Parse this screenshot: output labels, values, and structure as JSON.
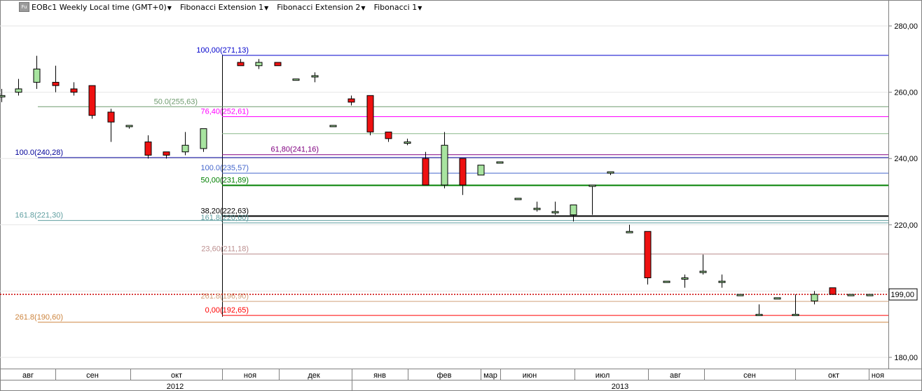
{
  "toolbar": {
    "badge": "Fu",
    "items": [
      {
        "label": "EOBc1 Weekly Local time (GMT+0)"
      },
      {
        "label": "Fibonacci Extension 1"
      },
      {
        "label": "Fibonacci Extension 2"
      },
      {
        "label": "Fibonacci 1"
      }
    ]
  },
  "chart_data": {
    "type": "candlestick",
    "symbol": "EOBc1",
    "timeframe": "Weekly",
    "ylim": [
      176,
      288
    ],
    "y_ticks": [
      "280,00",
      "260,00",
      "240,00",
      "220,00",
      "200,00",
      "180,00"
    ],
    "y_tick_values": [
      280,
      260,
      240,
      220,
      200,
      180
    ],
    "current_price": {
      "value": 199.0,
      "label": "199,00"
    },
    "month_labels": [
      "авг",
      "сен",
      "окт",
      "ноя",
      "дек",
      "янв",
      "фев",
      "мар",
      "июн",
      "июл",
      "авг",
      "сен",
      "окт",
      "ноя"
    ],
    "year_labels": [
      "2012",
      "2013"
    ],
    "candles": [
      {
        "o": 259,
        "h": 261,
        "l": 257,
        "c": 259
      },
      {
        "o": 260,
        "h": 264,
        "l": 259,
        "c": 261
      },
      {
        "o": 263,
        "h": 271,
        "l": 261,
        "c": 267
      },
      {
        "o": 263,
        "h": 268,
        "l": 260,
        "c": 262
      },
      {
        "o": 261,
        "h": 263,
        "l": 259,
        "c": 260
      },
      {
        "o": 262,
        "h": 262,
        "l": 252,
        "c": 253
      },
      {
        "o": 254,
        "h": 255,
        "l": 245,
        "c": 251
      },
      {
        "o": 250,
        "h": 250,
        "l": 249,
        "c": 250
      },
      {
        "o": 245,
        "h": 247,
        "l": 240,
        "c": 241
      },
      {
        "o": 242,
        "h": 242,
        "l": 240,
        "c": 241
      },
      {
        "o": 242,
        "h": 248,
        "l": 241,
        "c": 244
      },
      {
        "o": 243,
        "h": 249,
        "l": 242,
        "c": 249
      },
      {
        "o": 269,
        "h": 270,
        "l": 268,
        "c": 268
      },
      {
        "o": 268,
        "h": 270,
        "l": 267,
        "c": 269
      },
      {
        "o": 269,
        "h": 269,
        "l": 268,
        "c": 268
      },
      {
        "o": 264,
        "h": 264,
        "l": 264,
        "c": 264
      },
      {
        "o": 265,
        "h": 266,
        "l": 263,
        "c": 265
      },
      {
        "o": 250,
        "h": 250,
        "l": 250,
        "c": 250
      },
      {
        "o": 258,
        "h": 259,
        "l": 256,
        "c": 257
      },
      {
        "o": 259,
        "h": 259,
        "l": 247,
        "c": 248
      },
      {
        "o": 248,
        "h": 248,
        "l": 245,
        "c": 246
      },
      {
        "o": 245,
        "h": 246,
        "l": 244,
        "c": 245
      },
      {
        "o": 240,
        "h": 242,
        "l": 232,
        "c": 232
      },
      {
        "o": 232,
        "h": 248,
        "l": 231,
        "c": 244
      },
      {
        "o": 240,
        "h": 240,
        "l": 229,
        "c": 232
      },
      {
        "o": 235,
        "h": 238,
        "l": 235,
        "c": 238
      },
      {
        "o": 239,
        "h": 239,
        "l": 239,
        "c": 239
      },
      {
        "o": 228,
        "h": 228,
        "l": 228,
        "c": 228
      },
      {
        "o": 225,
        "h": 227,
        "l": 224,
        "c": 225
      },
      {
        "o": 224,
        "h": 227,
        "l": 223,
        "c": 224
      },
      {
        "o": 223,
        "h": 226,
        "l": 221,
        "c": 226
      },
      {
        "o": 232,
        "h": 232,
        "l": 223,
        "c": 232
      },
      {
        "o": 236,
        "h": 236,
        "l": 235,
        "c": 236
      },
      {
        "o": 218,
        "h": 220,
        "l": 218,
        "c": 218
      },
      {
        "o": 218,
        "h": 218,
        "l": 202,
        "c": 204
      },
      {
        "o": 203,
        "h": 203,
        "l": 203,
        "c": 203
      },
      {
        "o": 204,
        "h": 205,
        "l": 201,
        "c": 204
      },
      {
        "o": 206,
        "h": 211,
        "l": 205,
        "c": 206
      },
      {
        "o": 203,
        "h": 205,
        "l": 201,
        "c": 203
      },
      {
        "o": 199,
        "h": 199,
        "l": 199,
        "c": 199
      },
      {
        "o": 193,
        "h": 196,
        "l": 193,
        "c": 193
      },
      {
        "o": 198,
        "h": 198,
        "l": 198,
        "c": 198
      },
      {
        "o": 193,
        "h": 199,
        "l": 193,
        "c": 193
      },
      {
        "o": 197,
        "h": 200,
        "l": 196,
        "c": 199
      },
      {
        "o": 201,
        "h": 201,
        "l": 199,
        "c": 199
      },
      {
        "o": 199,
        "h": 199,
        "l": 199,
        "c": 199
      },
      {
        "o": 199,
        "h": 199,
        "l": 199,
        "c": 199
      }
    ],
    "fib_levels": [
      {
        "label": "100,00(271,13)",
        "value": 271.13,
        "color": "#0000cc",
        "group": "right"
      },
      {
        "label": "50.0(255,63)",
        "value": 255.63,
        "color": "#6e9a6e",
        "group": "left"
      },
      {
        "label": "76,40(252,61)",
        "value": 252.61,
        "color": "#ff00ff",
        "group": "right"
      },
      {
        "label": "61,80(241,16)",
        "value": 241.16,
        "color": "#800080",
        "group": "right"
      },
      {
        "label": "100.0(240,28)",
        "value": 240.28,
        "color": "#000099",
        "group": "left"
      },
      {
        "label": "100.0(235,57)",
        "value": 235.57,
        "color": "#4466cc",
        "group": "right"
      },
      {
        "label": "50,00(231,89)",
        "value": 231.89,
        "color": "#008000",
        "group": "right"
      },
      {
        "label": "38,20(222,63)",
        "value": 222.63,
        "color": "#000000",
        "group": "right"
      },
      {
        "label": "161.8(221,30)",
        "value": 221.3,
        "color": "#5f9ea0",
        "group": "left"
      },
      {
        "label": "161.8(220,60)",
        "value": 220.6,
        "color": "#5f9ea0",
        "group": "right"
      },
      {
        "label": "23,60(211,18)",
        "value": 211.18,
        "color": "#bc8f8f",
        "group": "right"
      },
      {
        "label": "261.8(196,90)",
        "value": 196.9,
        "color": "#d2a07a",
        "group": "right"
      },
      {
        "label": "0,00(192,65)",
        "value": 192.65,
        "color": "#ff0000",
        "group": "right"
      },
      {
        "label": "261.8(190,60)",
        "value": 190.6,
        "color": "#cd853f",
        "group": "left"
      }
    ],
    "unlabeled_levels": [
      {
        "value": 247.5,
        "color": "#88b888"
      }
    ],
    "colors": {
      "up": "#a8e4a0",
      "down": "#ee1111",
      "wick": "#000000",
      "current_price_line": "#cc0000"
    }
  }
}
